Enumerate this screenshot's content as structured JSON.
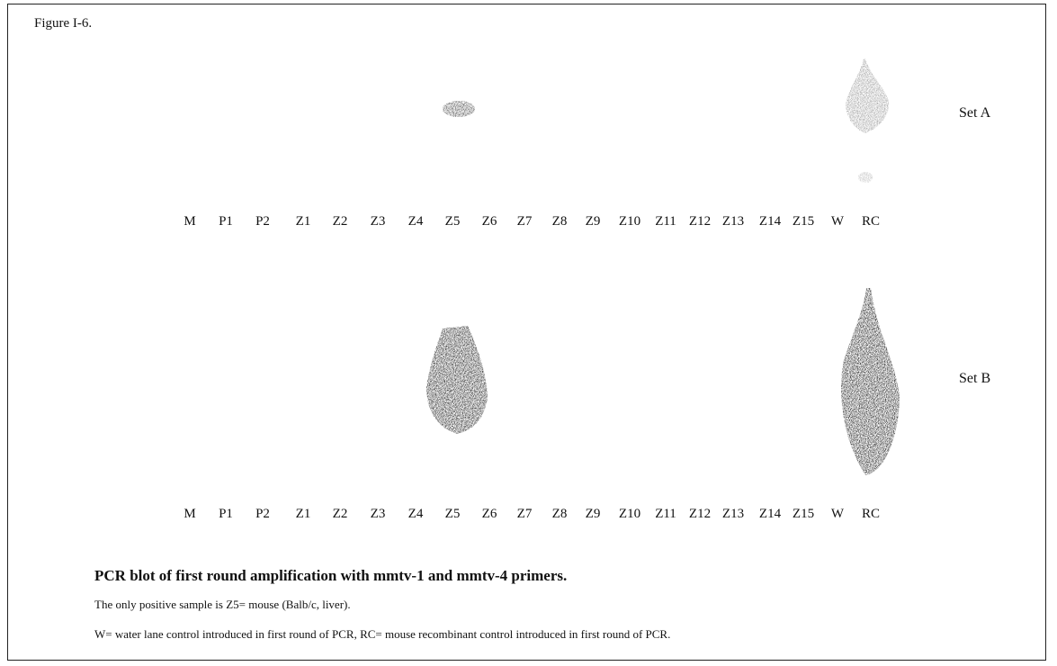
{
  "figure_label": "Figure I-6.",
  "panels": [
    {
      "name": "Set A",
      "lanes": [
        "M",
        "P1",
        "P2",
        "Z1",
        "Z2",
        "Z3",
        "Z4",
        "Z5",
        "Z6",
        "Z7",
        "Z8",
        "Z9",
        "Z10",
        "Z11",
        "Z12",
        "Z13",
        "Z14",
        "Z15",
        "W",
        "RC"
      ]
    },
    {
      "name": "Set B",
      "lanes": [
        "M",
        "P1",
        "P2",
        "Z1",
        "Z2",
        "Z3",
        "Z4",
        "Z5",
        "Z6",
        "Z7",
        "Z8",
        "Z9",
        "Z10",
        "Z11",
        "Z12",
        "Z13",
        "Z14",
        "Z15",
        "W",
        "RC"
      ]
    }
  ],
  "caption": {
    "title": "PCR blot of first round amplification  with mmtv-1 and mmtv-4 primers.",
    "lines": [
      "The only positive sample is Z5= mouse (Balb/c, liver).",
      "W= water lane control introduced in first round of PCR, RC= mouse recombinant control introduced in first round of PCR."
    ]
  }
}
